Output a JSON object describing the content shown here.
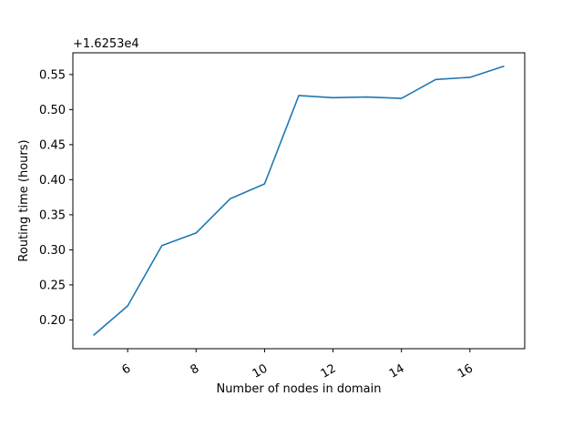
{
  "chart_data": {
    "type": "line",
    "title": "",
    "xlabel": "Number of nodes in domain",
    "ylabel": "Routing time (hours)",
    "y_offset_text": "+1.6253e4",
    "x": [
      5,
      6,
      7,
      8,
      9,
      10,
      11,
      12,
      13,
      14,
      15,
      16,
      17
    ],
    "series": [
      {
        "values": [
          0.178,
          0.22,
          0.306,
          0.324,
          0.373,
          0.394,
          0.52,
          0.517,
          0.518,
          0.516,
          0.543,
          0.546,
          0.562
        ],
        "color": "#1f77b4"
      }
    ],
    "x_ticks": [
      "6",
      "8",
      "10",
      "12",
      "14",
      "16"
    ],
    "y_ticks": [
      "0.20",
      "0.25",
      "0.30",
      "0.35",
      "0.40",
      "0.45",
      "0.50",
      "0.55"
    ],
    "xlim": [
      4.4,
      17.6
    ],
    "ylim": [
      0.159,
      0.581
    ],
    "x_tick_values": [
      6,
      8,
      10,
      12,
      14,
      16
    ],
    "y_tick_values": [
      0.2,
      0.25,
      0.3,
      0.35,
      0.4,
      0.45,
      0.5,
      0.55
    ],
    "x_tick_rotation_deg": -30,
    "grid": false,
    "legend": "none"
  }
}
